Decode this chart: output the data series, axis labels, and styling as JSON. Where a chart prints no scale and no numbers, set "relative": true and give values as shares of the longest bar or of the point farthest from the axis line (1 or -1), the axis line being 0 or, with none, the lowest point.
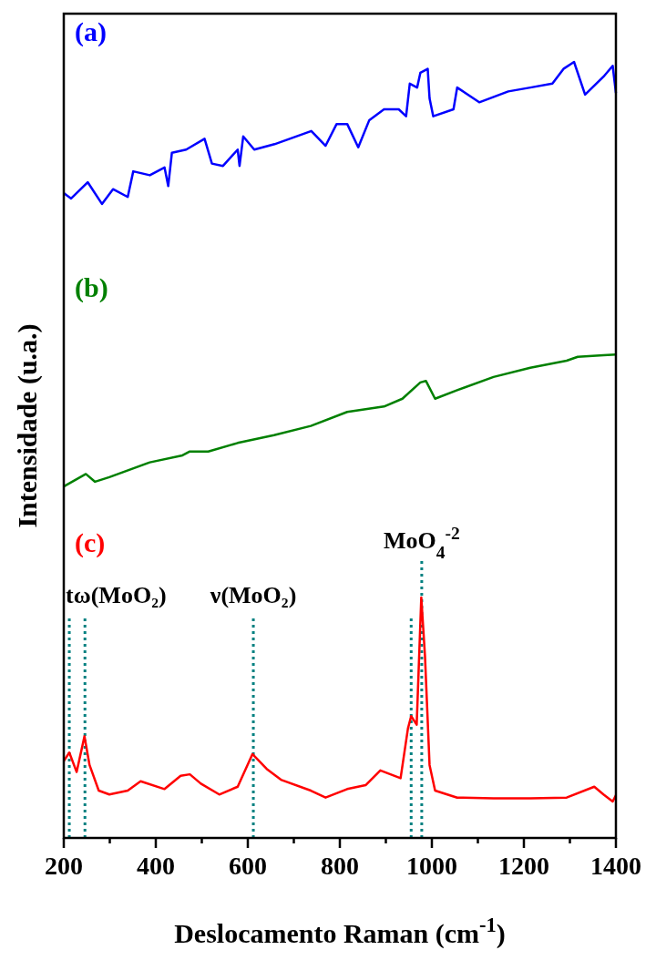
{
  "chart_data": {
    "type": "line",
    "relative": true,
    "xlabel": "Deslocamento Raman (cm$^{-1}$)",
    "ylabel": "Intensidade (u.a.)",
    "xlim": [
      200,
      1400
    ],
    "xticks": [
      200,
      {
        "value": 300,
        "label": null
      },
      400,
      {
        "value": 500,
        "label": null
      },
      600,
      {
        "value": 700,
        "label": null
      },
      800,
      {
        "value": 900,
        "label": null
      },
      1000,
      {
        "value": 1100,
        "label": null
      },
      1200,
      {
        "value": 1300,
        "label": null
      },
      1400
    ],
    "series": [
      {
        "name": "(a)",
        "color": "#0000ff",
        "x": [
          200,
          216,
          252,
          283,
          307,
          339,
          351,
          387,
          419,
          427,
          435,
          466,
          506,
          522,
          546,
          578,
          582,
          590,
          614,
          658,
          738,
          769,
          793,
          816,
          840,
          864,
          896,
          928,
          944,
          952,
          968,
          975,
          991,
          995,
          1003,
          1047,
          1055,
          1103,
          1166,
          1214,
          1262,
          1286,
          1309,
          1333,
          1373,
          1393,
          1400
        ],
        "values": [
          0.831,
          0.824,
          0.845,
          0.817,
          0.836,
          0.826,
          0.859,
          0.854,
          0.864,
          0.84,
          0.883,
          0.887,
          0.901,
          0.869,
          0.866,
          0.887,
          0.866,
          0.904,
          0.887,
          0.894,
          0.911,
          0.892,
          0.92,
          0.92,
          0.89,
          0.925,
          0.939,
          0.939,
          0.93,
          0.972,
          0.967,
          0.986,
          0.991,
          0.953,
          0.93,
          0.939,
          0.967,
          0.948,
          0.962,
          0.967,
          0.972,
          0.991,
          1.0,
          0.958,
          0.981,
          0.995,
          0.96
        ]
      },
      {
        "name": "(b)",
        "color": "#008000",
        "x": [
          200,
          248,
          268,
          299,
          387,
          458,
          474,
          514,
          578,
          657,
          737,
          816,
          896,
          936,
          975,
          987,
          1007,
          1055,
          1134,
          1214,
          1293,
          1317,
          1373,
          1400
        ],
        "values": [
          0.453,
          0.469,
          0.459,
          0.465,
          0.484,
          0.493,
          0.498,
          0.498,
          0.509,
          0.519,
          0.531,
          0.549,
          0.556,
          0.566,
          0.587,
          0.589,
          0.566,
          0.577,
          0.594,
          0.606,
          0.615,
          0.62,
          0.622,
          0.623
        ]
      },
      {
        "name": "(c)",
        "color": "#ff0000",
        "x": [
          200,
          212,
          228,
          245,
          256,
          276,
          299,
          339,
          367,
          419,
          454,
          474,
          498,
          538,
          578,
          610,
          641,
          672,
          737,
          769,
          816,
          856,
          888,
          932,
          948,
          955,
          967,
          977,
          985,
          995,
          1007,
          1055,
          1134,
          1214,
          1293,
          1353,
          1373,
          1393,
          1400
        ],
        "values": [
          0.099,
          0.11,
          0.085,
          0.131,
          0.094,
          0.061,
          0.056,
          0.061,
          0.073,
          0.063,
          0.08,
          0.082,
          0.07,
          0.056,
          0.066,
          0.108,
          0.089,
          0.075,
          0.061,
          0.052,
          0.063,
          0.068,
          0.087,
          0.077,
          0.141,
          0.157,
          0.146,
          0.31,
          0.235,
          0.094,
          0.061,
          0.052,
          0.051,
          0.051,
          0.052,
          0.066,
          0.056,
          0.047,
          0.055
        ]
      }
    ],
    "ref_lines": [
      {
        "axis": "x",
        "value": 212,
        "color": "#008080",
        "line_style": "dotted",
        "label": "tω(MoO₂)"
      },
      {
        "axis": "x",
        "value": 246,
        "color": "#008080",
        "line_style": "dotted"
      },
      {
        "axis": "x",
        "value": 612,
        "color": "#008080",
        "line_style": "dotted",
        "label": "ν(MoO₂)"
      },
      {
        "axis": "x",
        "value": 955,
        "color": "#008080",
        "line_style": "dotted"
      },
      {
        "axis": "x",
        "value": 978,
        "color": "#008080",
        "line_style": "dotted",
        "label": "MoO$_{4}$$^{-2}$"
      }
    ]
  }
}
